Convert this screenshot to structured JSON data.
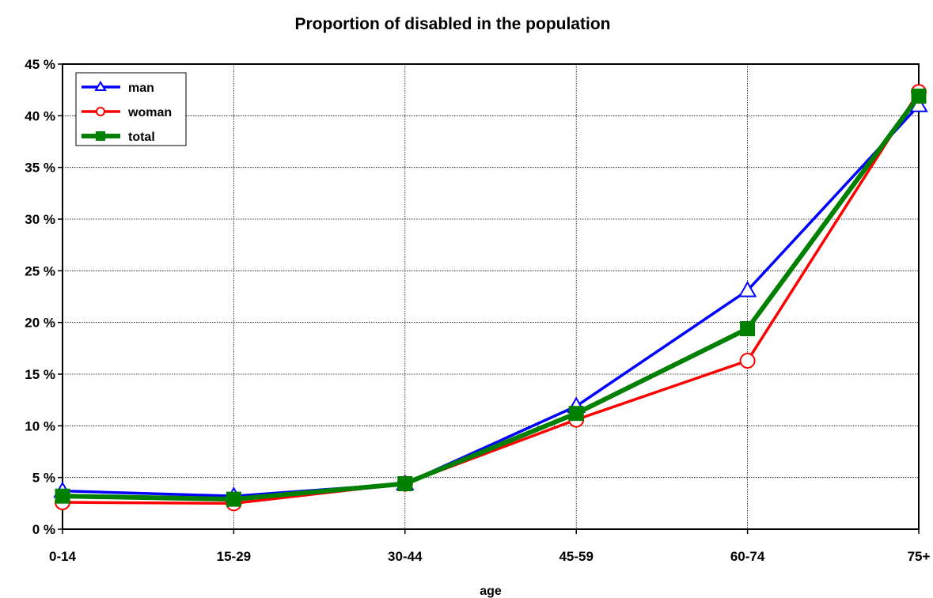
{
  "chart_data": {
    "type": "line",
    "title": "Proportion of disabled in the population",
    "xlabel": "age",
    "ylabel": "",
    "categories": [
      "0-14",
      "15-29",
      "30-44",
      "45-59",
      "60-74",
      "75+"
    ],
    "y_ticks": [
      "0 %",
      "5 %",
      "10 %",
      "15 %",
      "20 %",
      "25 %",
      "30 %",
      "35 %",
      "40 %",
      "45 %"
    ],
    "ylim": [
      0,
      45
    ],
    "grid": true,
    "legend_position": "top-left",
    "series": [
      {
        "name": "man",
        "color": "#0000ff",
        "marker": "triangle",
        "values": [
          3.7,
          3.2,
          4.4,
          11.9,
          23.1,
          41.0
        ]
      },
      {
        "name": "woman",
        "color": "#ff0000",
        "marker": "circle",
        "values": [
          2.6,
          2.5,
          4.4,
          10.6,
          16.3,
          42.3
        ]
      },
      {
        "name": "total",
        "color": "#008000",
        "marker": "square",
        "values": [
          3.2,
          2.9,
          4.4,
          11.2,
          19.4,
          41.9
        ]
      }
    ]
  }
}
